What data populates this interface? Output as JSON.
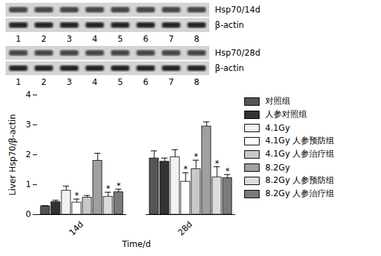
{
  "blots": [
    {
      "rows": [
        "Hsp70/14d",
        "β-actin"
      ],
      "lanes": [
        1,
        2,
        3,
        4,
        5,
        6,
        7,
        8
      ]
    },
    {
      "rows": [
        "Hsp70/28d",
        "β-actin"
      ],
      "lanes": [
        1,
        2,
        3,
        4,
        5,
        6,
        7,
        8
      ]
    }
  ],
  "chart_data": {
    "type": "bar",
    "categories": [
      "14d",
      "28d"
    ],
    "x_label": "Time/d",
    "y_label": "Liver Hsp70/β-actin",
    "ylim": [
      0,
      4
    ],
    "yticks": [
      0,
      1,
      2,
      3,
      4
    ],
    "legend": "right",
    "series": [
      {
        "name": "对照组",
        "color": "#555555",
        "values": [
          0.28,
          1.88
        ],
        "errors": [
          0.02,
          0.25
        ]
      },
      {
        "name": "人参对照组",
        "color": "#333333",
        "values": [
          0.42,
          1.77
        ],
        "errors": [
          0.06,
          0.12
        ]
      },
      {
        "name": "4.1Gy",
        "color": "#f2f2f2",
        "values": [
          0.8,
          1.92
        ],
        "errors": [
          0.15,
          0.25
        ]
      },
      {
        "name": "4.1Gy 人参预防组",
        "color": "#ffffff",
        "values": [
          0.4,
          1.1
        ],
        "errors": [
          0.12,
          0.3
        ]
      },
      {
        "name": "4.1Gy 人参治疗组",
        "color": "#c8c8c8",
        "values": [
          0.57,
          1.52
        ],
        "errors": [
          0.07,
          0.3
        ]
      },
      {
        "name": "8.2Gy",
        "color": "#a0a0a0",
        "values": [
          1.8,
          2.95
        ],
        "errors": [
          0.25,
          0.15
        ]
      },
      {
        "name": "8.2Gy 人参预防组",
        "color": "#dcdcdc",
        "values": [
          0.6,
          1.25
        ],
        "errors": [
          0.15,
          0.35
        ]
      },
      {
        "name": "8.2Gy 人参治疗组",
        "color": "#7a7a7a",
        "values": [
          0.75,
          1.22
        ],
        "errors": [
          0.1,
          0.12
        ]
      }
    ],
    "annotations": [
      {
        "series": "4.1Gy 人参预防组",
        "category": "14d",
        "text": "*"
      },
      {
        "series": "8.2Gy 人参预防组",
        "category": "14d",
        "text": "*"
      },
      {
        "series": "8.2Gy 人参治疗组",
        "category": "14d",
        "text": "*"
      },
      {
        "series": "4.1Gy 人参预防组",
        "category": "28d",
        "text": "*"
      },
      {
        "series": "4.1Gy 人参治疗组",
        "category": "28d",
        "text": "*"
      },
      {
        "series": "8.2Gy 人参预防组",
        "category": "28d",
        "text": "*"
      },
      {
        "series": "8.2Gy 人参治疗组",
        "category": "28d",
        "text": "*"
      }
    ]
  }
}
